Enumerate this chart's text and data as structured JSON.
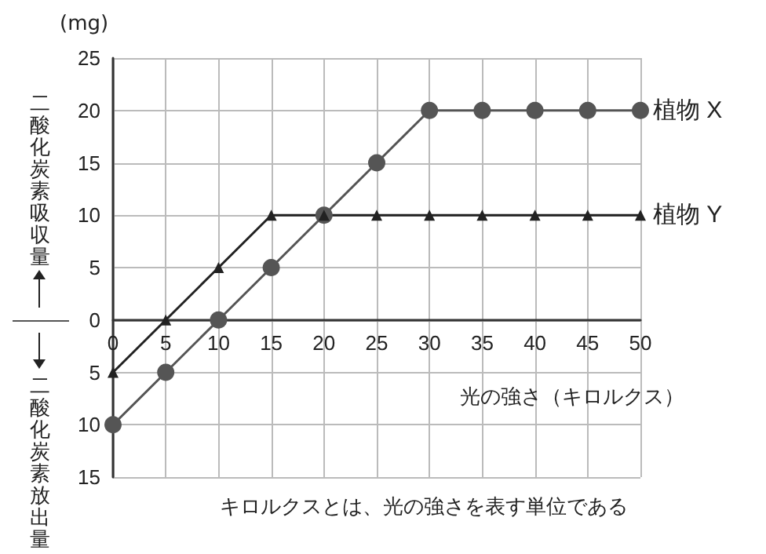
{
  "chart_data": {
    "type": "line",
    "xlabel": "光の強さ（キロルクス）",
    "ylabel": "二酸化炭素吸収量",
    "annotations": [
      "(mg)",
      "二酸化炭素放出量",
      "キロルクスとは、光の強さを表す単位である"
    ],
    "x": [
      0,
      5,
      10,
      15,
      20,
      25,
      30,
      35,
      40,
      45,
      50
    ],
    "series": [
      {
        "name": "植物 X",
        "color": "#555555",
        "marker": "circle",
        "values": [
          -10,
          -5,
          0,
          5,
          10,
          15,
          20,
          20,
          20,
          20,
          20
        ]
      },
      {
        "name": "植物 Y",
        "color": "#222222",
        "marker": "triangle",
        "values": [
          -5,
          0,
          5,
          10,
          10,
          10,
          10,
          10,
          10,
          10,
          10
        ]
      }
    ],
    "xlim": [
      0,
      50
    ],
    "xticks": [
      0,
      5,
      10,
      15,
      20,
      25,
      30,
      35,
      40,
      45,
      50
    ],
    "ylim": [
      -15,
      25
    ],
    "yticks": [
      {
        "value": -15,
        "label": "15"
      },
      {
        "value": -10,
        "label": "10"
      },
      {
        "value": -5,
        "label": "5"
      },
      0,
      5,
      10,
      15,
      20,
      25
    ],
    "grid": true,
    "legend": false
  }
}
